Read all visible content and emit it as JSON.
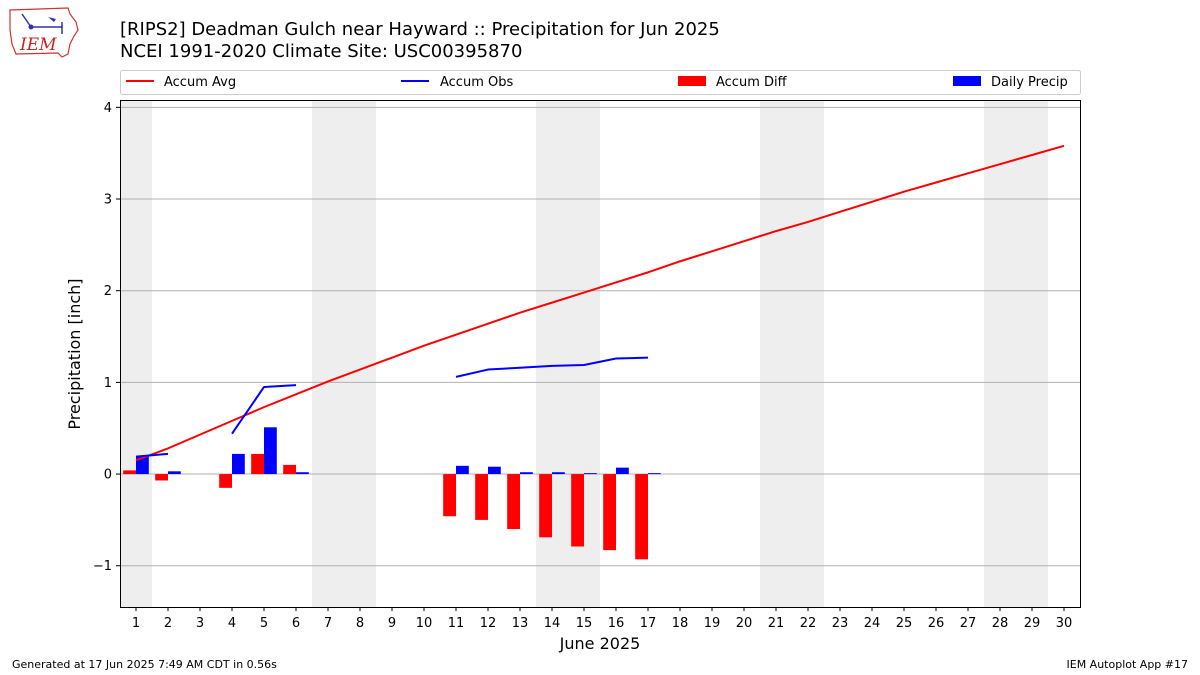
{
  "title": "[RIPS2] Deadman Gulch near Hayward :: Precipitation for Jun 2025",
  "subtitle": "NCEI 1991-2020 Climate Site: USC00395870",
  "logo_text": "IEM",
  "footer_left": "Generated at 17 Jun 2025 7:49 AM CDT in 0.56s",
  "footer_right": "IEM Autoplot App #17",
  "colors": {
    "accum_avg": "#ff0000",
    "accum_obs": "#0000ff",
    "accum_diff": "#ff0000",
    "daily_precip": "#0000ff",
    "weekend_shade": "#eeeeee",
    "grid": "#b0b0b0"
  },
  "chart_data": {
    "type": "bar",
    "xlabel": "June 2025",
    "ylabel": "Precipitation [inch]",
    "ylim": [
      -1.45,
      4.08
    ],
    "xlim": [
      0.5,
      30.5
    ],
    "yticks": [
      -1,
      0,
      1,
      2,
      3,
      4
    ],
    "ytick_labels": [
      "−1",
      "0",
      "1",
      "2",
      "3",
      "4"
    ],
    "xticks": [
      1,
      2,
      3,
      4,
      5,
      6,
      7,
      8,
      9,
      10,
      11,
      12,
      13,
      14,
      15,
      16,
      17,
      18,
      19,
      20,
      21,
      22,
      23,
      24,
      25,
      26,
      27,
      28,
      29,
      30
    ],
    "grid": "horizontal",
    "legend_placement": "top",
    "weekend_shading": [
      [
        0.5,
        1.5
      ],
      [
        6.5,
        8.5
      ],
      [
        13.5,
        15.5
      ],
      [
        20.5,
        22.5
      ],
      [
        27.5,
        29.5
      ]
    ],
    "days": [
      1,
      2,
      3,
      4,
      5,
      6,
      7,
      8,
      9,
      10,
      11,
      12,
      13,
      14,
      15,
      16,
      17,
      18,
      19,
      20,
      21,
      22,
      23,
      24,
      25,
      26,
      27,
      28,
      29,
      30
    ],
    "series": [
      {
        "name": "Accum Avg",
        "kind": "line",
        "values": [
          0.15,
          0.28,
          0.43,
          0.58,
          0.73,
          0.87,
          1.01,
          1.14,
          1.27,
          1.4,
          1.52,
          1.64,
          1.76,
          1.87,
          1.98,
          2.09,
          2.2,
          2.32,
          2.43,
          2.54,
          2.65,
          2.75,
          2.86,
          2.97,
          3.08,
          3.18,
          3.28,
          3.38,
          3.48,
          3.58
        ]
      },
      {
        "name": "Accum Obs",
        "kind": "line",
        "values": [
          0.19,
          0.22,
          null,
          0.44,
          0.95,
          0.97,
          null,
          null,
          null,
          null,
          1.06,
          1.14,
          1.16,
          1.18,
          1.19,
          1.26,
          1.27,
          null,
          null,
          null,
          null,
          null,
          null,
          null,
          null,
          null,
          null,
          null,
          null,
          null
        ]
      },
      {
        "name": "Accum Diff",
        "kind": "bar",
        "values": [
          0.04,
          -0.07,
          null,
          -0.15,
          0.22,
          0.1,
          null,
          null,
          null,
          null,
          -0.46,
          -0.5,
          -0.6,
          -0.69,
          -0.79,
          -0.83,
          -0.93,
          null,
          null,
          null,
          null,
          null,
          null,
          null,
          null,
          null,
          null,
          null,
          null,
          null
        ]
      },
      {
        "name": "Daily Precip",
        "kind": "bar",
        "values": [
          0.19,
          0.03,
          null,
          0.22,
          0.51,
          0.02,
          null,
          null,
          null,
          null,
          0.09,
          0.08,
          0.02,
          0.02,
          0.01,
          0.07,
          0.01,
          null,
          null,
          null,
          null,
          null,
          null,
          null,
          null,
          null,
          null,
          null,
          null,
          null
        ]
      }
    ]
  }
}
